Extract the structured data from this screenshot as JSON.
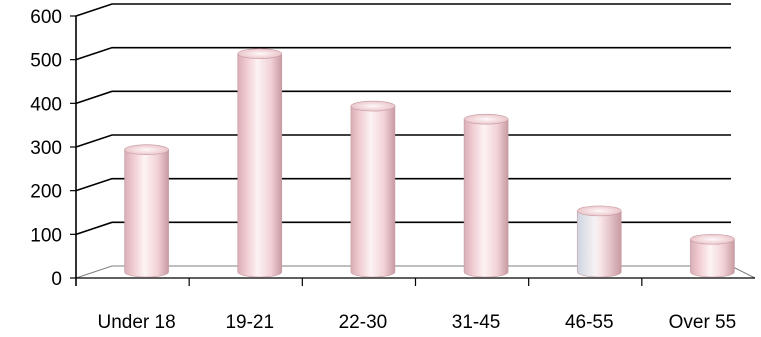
{
  "chart_data": {
    "type": "bar",
    "style": "3d-cylinder",
    "categories": [
      "Under 18",
      "19-21",
      "22-30",
      "31-45",
      "46-55",
      "Over 55"
    ],
    "values": [
      280,
      500,
      380,
      350,
      140,
      75
    ],
    "yticks": [
      0,
      100,
      200,
      300,
      400,
      500,
      600
    ],
    "ylim": [
      0,
      600
    ],
    "grid": true,
    "legend": "none",
    "title": "",
    "xlabel": "",
    "ylabel": "",
    "colors": {
      "bar_light": "#fbeef0",
      "bar_mid": "#efc9ce",
      "bar_dark": "#c99aa2",
      "grid": "#000000"
    }
  }
}
